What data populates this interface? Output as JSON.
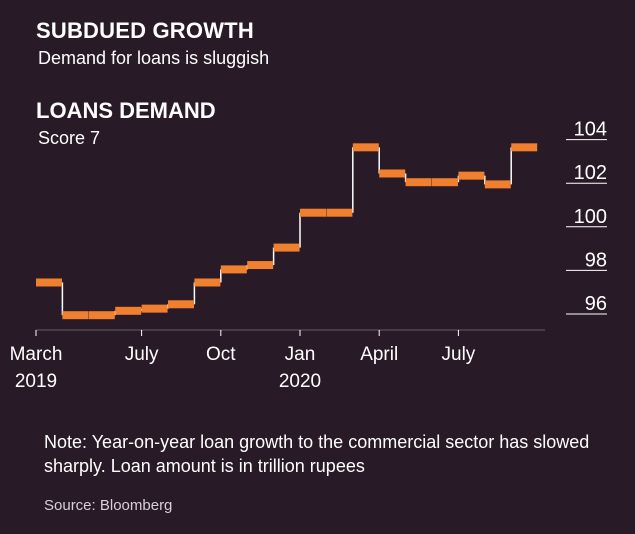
{
  "header": {
    "title": "SUBDUED GROWTH",
    "subtitle": "Demand for loans is sluggish"
  },
  "chart_data": {
    "type": "line",
    "title": "LOANS DEMAND",
    "subtitle": "Score 7",
    "step": true,
    "x_unit": "month",
    "series": [
      {
        "name": "",
        "color": "#f07f2e",
        "points": [
          {
            "x": "2019-03",
            "y": 97.4
          },
          {
            "x": "2019-04",
            "y": 95.9
          },
          {
            "x": "2019-05",
            "y": 95.9
          },
          {
            "x": "2019-06",
            "y": 96.1
          },
          {
            "x": "2019-07",
            "y": 96.2
          },
          {
            "x": "2019-08",
            "y": 96.4
          },
          {
            "x": "2019-09",
            "y": 97.4
          },
          {
            "x": "2019-10",
            "y": 98.0
          },
          {
            "x": "2019-11",
            "y": 98.2
          },
          {
            "x": "2019-12",
            "y": 99.0
          },
          {
            "x": "2020-01",
            "y": 100.6
          },
          {
            "x": "2020-02",
            "y": 100.6
          },
          {
            "x": "2020-03",
            "y": 103.6
          },
          {
            "x": "2020-04",
            "y": 102.4
          },
          {
            "x": "2020-05",
            "y": 102.0
          },
          {
            "x": "2020-06",
            "y": 102.0
          },
          {
            "x": "2020-07",
            "y": 102.3
          },
          {
            "x": "2020-08",
            "y": 101.9
          },
          {
            "x": "2020-09",
            "y": 103.6
          }
        ]
      }
    ],
    "y_axis": {
      "position": "right",
      "range": [
        95,
        105
      ],
      "ticks": [
        96,
        98,
        100,
        102,
        104
      ],
      "tick_labels": [
        "96",
        "98",
        "100",
        "102",
        "104"
      ]
    },
    "x_axis": {
      "ticks": [
        {
          "x": "2019-03",
          "label": "March",
          "sub": "2019"
        },
        {
          "x": "2019-07",
          "label": "July",
          "sub": ""
        },
        {
          "x": "2019-10",
          "label": "Oct",
          "sub": ""
        },
        {
          "x": "2020-01",
          "label": "Jan",
          "sub": "2020"
        },
        {
          "x": "2020-04",
          "label": "April",
          "sub": ""
        },
        {
          "x": "2020-07",
          "label": "July",
          "sub": ""
        }
      ]
    },
    "grid": false,
    "legend": "none"
  },
  "footer": {
    "note": "Note: Year-on-year loan growth to the commercial sector has slowed sharply. Loan amount is in trillion rupees",
    "source": "Source: Bloomberg"
  }
}
